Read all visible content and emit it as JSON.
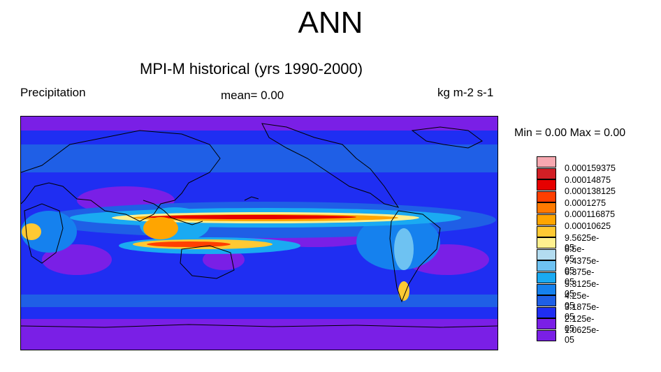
{
  "title": "ANN",
  "subtitle": "MPI-M historical (yrs 1990-2000)",
  "left_label": "Precipitation",
  "center_label": "mean=   0.00",
  "right_label": "kg m-2 s-1",
  "minmax_label": "Min =   0.00 Max =   0.00",
  "legend": {
    "levels": [
      {
        "label": "0.000159375",
        "color": "#f7a8b0"
      },
      {
        "label": "0.00014875",
        "color": "#d21f25"
      },
      {
        "label": "0.000138125",
        "color": "#e60000"
      },
      {
        "label": "0.0001275",
        "color": "#ff3f00"
      },
      {
        "label": "0.000116875",
        "color": "#ff7a00"
      },
      {
        "label": "0.00010625",
        "color": "#ffa500"
      },
      {
        "label": "9.5625e-05",
        "color": "#ffc933"
      },
      {
        "label": "8.5e-05",
        "color": "#fff08f"
      },
      {
        "label": "7.4375e-05",
        "color": "#b3dcf0"
      },
      {
        "label": "6.375e-05",
        "color": "#6ec2f2"
      },
      {
        "label": "5.3125e-05",
        "color": "#1aaaf2"
      },
      {
        "label": "4.25e-05",
        "color": "#1581ee"
      },
      {
        "label": "3.1875e-05",
        "color": "#1f5fe6"
      },
      {
        "label": "2.125e-05",
        "color": "#1f2ef2"
      },
      {
        "label": "1.0625e-05",
        "color": "#7a1fe6"
      }
    ],
    "extra_color": "#7a1fe6"
  },
  "colors": {
    "dry": "#7a1fe6",
    "low": "#1f2ef2",
    "mid": "#1f5fe6",
    "wet": "#1581ee",
    "coast": "#000000"
  }
}
